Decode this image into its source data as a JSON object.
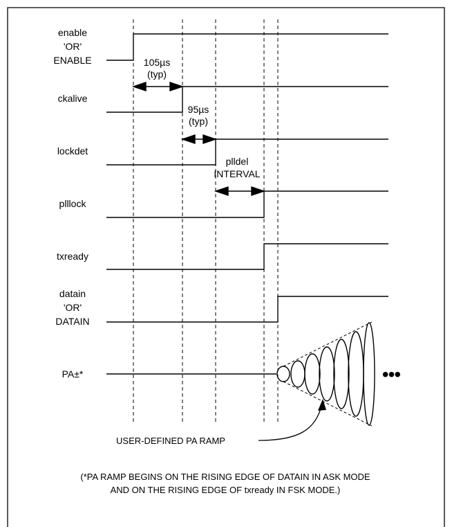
{
  "signals": [
    {
      "id": "enable",
      "label_lines": [
        "enable",
        "'OR'",
        "ENABLE"
      ]
    },
    {
      "id": "ckalive",
      "label_lines": [
        "ckalive"
      ]
    },
    {
      "id": "lockdet",
      "label_lines": [
        "lockdet"
      ]
    },
    {
      "id": "plllock",
      "label_lines": [
        "plllock"
      ]
    },
    {
      "id": "txready",
      "label_lines": [
        "txready"
      ]
    },
    {
      "id": "datain",
      "label_lines": [
        "datain",
        "'OR'",
        "DATAIN"
      ]
    },
    {
      "id": "pa",
      "label_lines": [
        "PA±*"
      ]
    }
  ],
  "timing_annotations": [
    {
      "id": "ann-105us",
      "lines": [
        "105µs",
        "(typ)"
      ]
    },
    {
      "id": "ann-95us",
      "lines": [
        "95µs",
        "(typ)"
      ]
    },
    {
      "id": "ann-plldel",
      "lines": [
        "plldel",
        "INTERVAL"
      ]
    }
  ],
  "ramp_label": "USER-DEFINED PA RAMP",
  "continuation": "•••",
  "footnote": [
    "(*PA RAMP BEGINS ON THE RISING EDGE OF DATAIN IN ASK MODE",
    "AND ON THE RISING EDGE OF txready IN FSK MODE.)"
  ]
}
